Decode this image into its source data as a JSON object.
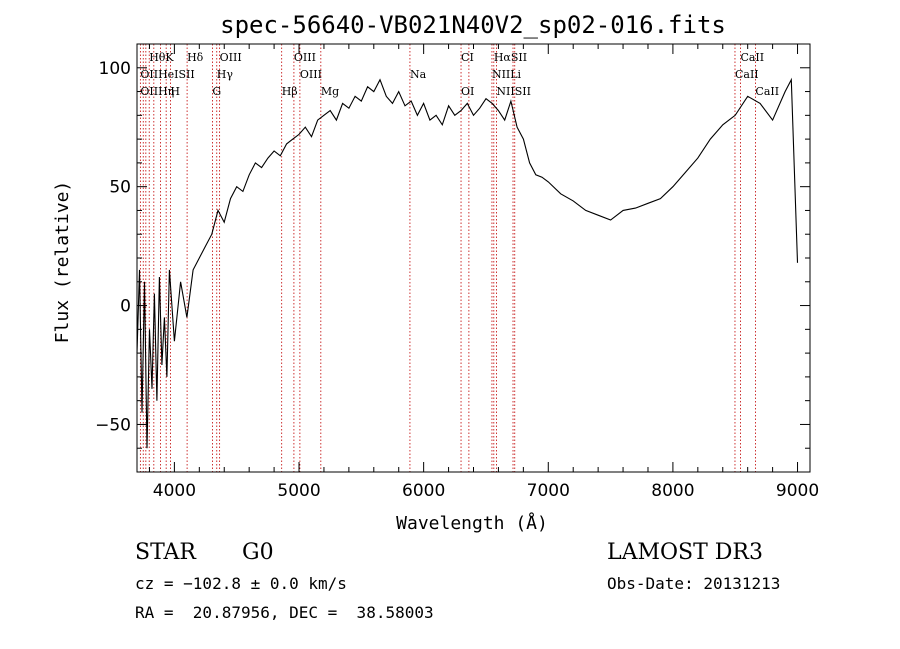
{
  "chart_data": {
    "type": "line",
    "title": "spec-56640-VB021N40V2_sp02-016.fits",
    "xlabel": "Wavelength (Å)",
    "ylabel": "Flux (relative)",
    "xlim": [
      3700,
      9100
    ],
    "ylim": [
      -70,
      110
    ],
    "xticks": [
      4000,
      5000,
      6000,
      7000,
      8000,
      9000
    ],
    "yticks": [
      -50,
      0,
      50,
      100
    ],
    "grid": false,
    "series": [
      {
        "name": "flux",
        "x": [
          3700,
          3720,
          3740,
          3760,
          3780,
          3800,
          3820,
          3840,
          3860,
          3880,
          3900,
          3920,
          3940,
          3960,
          3980,
          4000,
          4050,
          4100,
          4150,
          4200,
          4250,
          4300,
          4350,
          4400,
          4450,
          4500,
          4550,
          4600,
          4650,
          4700,
          4750,
          4800,
          4850,
          4900,
          4950,
          5000,
          5050,
          5100,
          5150,
          5200,
          5250,
          5300,
          5350,
          5400,
          5450,
          5500,
          5550,
          5600,
          5650,
          5700,
          5750,
          5800,
          5850,
          5900,
          5950,
          6000,
          6050,
          6100,
          6150,
          6200,
          6250,
          6300,
          6350,
          6400,
          6450,
          6500,
          6550,
          6600,
          6650,
          6700,
          6750,
          6800,
          6850,
          6900,
          6950,
          7000,
          7100,
          7200,
          7300,
          7400,
          7500,
          7600,
          7700,
          7800,
          7900,
          8000,
          8100,
          8200,
          8300,
          8400,
          8500,
          8600,
          8700,
          8800,
          8900,
          8950,
          9000
        ],
        "values": [
          -20,
          15,
          -45,
          10,
          -60,
          -10,
          -35,
          5,
          -40,
          12,
          -25,
          -5,
          -30,
          15,
          0,
          -15,
          10,
          -5,
          15,
          20,
          25,
          30,
          40,
          35,
          45,
          50,
          48,
          55,
          60,
          58,
          62,
          65,
          63,
          68,
          70,
          72,
          75,
          71,
          78,
          80,
          82,
          78,
          85,
          83,
          88,
          86,
          92,
          90,
          95,
          88,
          85,
          90,
          84,
          86,
          80,
          85,
          78,
          80,
          76,
          84,
          80,
          82,
          85,
          80,
          83,
          87,
          85,
          82,
          78,
          86,
          75,
          70,
          60,
          55,
          54,
          52,
          47,
          44,
          40,
          38,
          36,
          40,
          41,
          43,
          45,
          50,
          56,
          62,
          70,
          76,
          80,
          88,
          85,
          78,
          90,
          95,
          18
        ]
      }
    ],
    "lines_lower": [
      {
        "label": "OIIHη",
        "x": 3727
      },
      {
        "label": "H",
        "x": 3968
      },
      {
        "label": "G",
        "x": 4305
      },
      {
        "label": "Hβ",
        "x": 4861
      },
      {
        "label": "Mg",
        "x": 5175
      },
      {
        "label": "OI",
        "x": 6300
      },
      {
        "label": "NIISII",
        "x": 6584
      },
      {
        "label": "CaII",
        "x": 8662
      }
    ],
    "lines_upper": [
      {
        "label": "HθK",
        "x": 3798
      },
      {
        "label": "Hδ",
        "x": 4102
      },
      {
        "label": "OIII",
        "x": 4363
      },
      {
        "label": "OIII",
        "x": 4959
      },
      {
        "label": "CI",
        "x": 6300
      },
      {
        "label": "HαSII",
        "x": 6563
      },
      {
        "label": "CaII",
        "x": 8542
      }
    ],
    "lines_middle": [
      {
        "label": "OIIHeISII",
        "x": 3727
      },
      {
        "label": "Hγ",
        "x": 4340
      },
      {
        "label": "OIII",
        "x": 5007
      },
      {
        "label": "Na",
        "x": 5890
      },
      {
        "label": "NIILi",
        "x": 6548
      },
      {
        "label": "CaII",
        "x": 8498
      }
    ],
    "marker_lines_x": [
      3727,
      3750,
      3771,
      3798,
      3835,
      3889,
      3934,
      3968,
      4102,
      4305,
      4340,
      4363,
      4861,
      4959,
      5007,
      5175,
      5890,
      6300,
      6363,
      6548,
      6563,
      6584,
      6717,
      6731,
      8498,
      8542,
      8662
    ]
  },
  "info": {
    "object_class": "STAR",
    "subclass": "G0",
    "redshift": "cz = −102.8 ± 0.0 km/s",
    "coords": "RA =  20.87956, DEC =  38.58003",
    "survey": "LAMOST DR3",
    "obs_date": "Obs-Date: 20131213"
  }
}
